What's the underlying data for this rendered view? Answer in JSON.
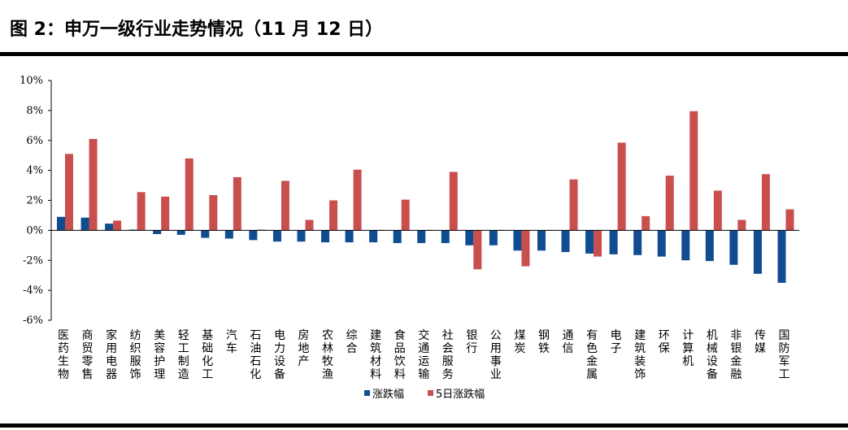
{
  "page": {
    "title": "图 2：申万一级行业走势情况（11 月 12 日）"
  },
  "chart_data": {
    "type": "bar",
    "title": "",
    "xlabel": "",
    "ylabel": "",
    "ylim": [
      -6,
      10
    ],
    "yticks": [
      -6,
      -4,
      -2,
      0,
      2,
      4,
      6,
      8,
      10
    ],
    "ytick_labels": [
      "-6%",
      "-4%",
      "-2%",
      "0%",
      "2%",
      "4%",
      "6%",
      "8%",
      "10%"
    ],
    "categories": [
      "医药生物",
      "商贸零售",
      "家用电器",
      "纺织服饰",
      "美容护理",
      "轻工制造",
      "基础化工",
      "汽车",
      "石油石化",
      "电力设备",
      "房地产",
      "农林牧渔",
      "综合",
      "建筑材料",
      "食品饮料",
      "交通运输",
      "社会服务",
      "银行",
      "公用事业",
      "煤炭",
      "钢铁",
      "通信",
      "有色金属",
      "电子",
      "建筑装饰",
      "环保",
      "计算机",
      "机械设备",
      "非银金融",
      "传媒",
      "国防军工"
    ],
    "series": [
      {
        "name": "涨跌幅",
        "color": "#0f4c92",
        "values": [
          0.9,
          0.85,
          0.45,
          0.05,
          -0.25,
          -0.3,
          -0.5,
          -0.55,
          -0.65,
          -0.75,
          -0.75,
          -0.8,
          -0.8,
          -0.8,
          -0.85,
          -0.85,
          -0.85,
          -1.0,
          -1.0,
          -1.35,
          -1.35,
          -1.45,
          -1.55,
          -1.6,
          -1.65,
          -1.75,
          -2.0,
          -2.05,
          -2.3,
          -2.9,
          -3.5
        ]
      },
      {
        "name": "5日涨跌幅",
        "color": "#c94f4f",
        "values": [
          5.1,
          6.1,
          0.65,
          2.55,
          2.25,
          4.8,
          2.35,
          3.55,
          0.05,
          3.3,
          0.7,
          2.0,
          4.05,
          0.0,
          2.05,
          0.0,
          3.9,
          -2.6,
          0.0,
          -2.4,
          0.0,
          3.4,
          -1.75,
          5.85,
          0.95,
          3.65,
          7.95,
          2.65,
          0.7,
          3.75,
          1.4
        ]
      }
    ],
    "legend": "bottom-center",
    "grid": false
  }
}
